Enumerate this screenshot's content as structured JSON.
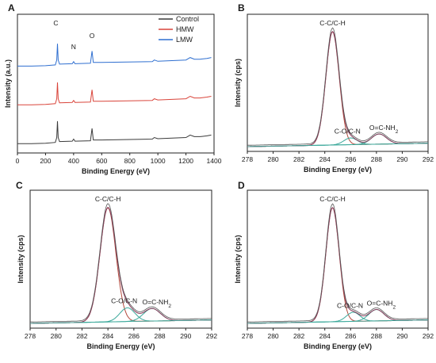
{
  "colors": {
    "control": "#3a3a3a",
    "hmw": "#d9443a",
    "lmw": "#2f6fd0",
    "fit": "#b34a3d",
    "sub": "#3aa89a",
    "env": "#8a3a5a"
  },
  "chart_data": [
    {
      "type": "line",
      "panel": "A",
      "xlabel": "Binding Energy (eV)",
      "ylabel": "Intensity (a.u.)",
      "xlim": [
        0,
        1400
      ],
      "x_ticks": [
        "0",
        "200",
        "400",
        "600",
        "800",
        "1000",
        "1200",
        "1400"
      ],
      "legend": {
        "placement": "top-right",
        "entries": [
          "Control",
          "HMW",
          "LMW"
        ]
      },
      "peak_labels": [
        {
          "text": "C",
          "x": 285
        },
        {
          "text": "N",
          "x": 400
        },
        {
          "text": "O",
          "x": 531
        }
      ],
      "series": [
        {
          "name": "Control",
          "color_key": "control",
          "offset": 0.0
        },
        {
          "name": "HMW",
          "color_key": "hmw",
          "offset": 0.33
        },
        {
          "name": "LMW",
          "color_key": "lmw",
          "offset": 0.66
        }
      ],
      "spectrum_points": {
        "x": [
          0,
          100,
          200,
          270,
          280,
          285,
          290,
          300,
          390,
          400,
          410,
          520,
          531,
          540,
          600,
          960,
          975,
          1000,
          1200,
          1230,
          1260,
          1300,
          1350,
          1380
        ],
        "y": [
          0.05,
          0.05,
          0.06,
          0.08,
          0.2,
          0.6,
          0.2,
          0.1,
          0.11,
          0.16,
          0.11,
          0.12,
          0.42,
          0.14,
          0.14,
          0.16,
          0.2,
          0.17,
          0.2,
          0.26,
          0.22,
          0.22,
          0.24,
          0.26
        ]
      }
    },
    {
      "type": "line",
      "panel": "B",
      "xlabel": "Binding Energy (eV)",
      "ylabel": "Intensity (cps)",
      "xlim": [
        278,
        292
      ],
      "x_ticks": [
        "278",
        "280",
        "282",
        "284",
        "286",
        "288",
        "290",
        "292"
      ],
      "peaks": [
        {
          "label": "C-C/C-H",
          "center": 284.6,
          "height": 1.0,
          "width": 0.8
        },
        {
          "label": "C-O/C-N",
          "center": 286.0,
          "height": 0.06,
          "width": 0.8
        },
        {
          "label": "O=C-NH",
          "label_sub": "2",
          "center": 288.2,
          "height": 0.09,
          "width": 0.9
        }
      ]
    },
    {
      "type": "line",
      "panel": "C",
      "xlabel": "Binding Energy (eV)",
      "ylabel": "Intensity (cps)",
      "xlim": [
        278,
        292
      ],
      "x_ticks": [
        "278",
        "280",
        "282",
        "284",
        "286",
        "288",
        "290",
        "292"
      ],
      "peaks": [
        {
          "label": "C-C/C-H",
          "center": 284.0,
          "height": 1.0,
          "width": 0.95
        },
        {
          "label": "C-O/C-N",
          "center": 285.5,
          "height": 0.12,
          "width": 0.9
        },
        {
          "label": "O=C-NH",
          "label_sub": "2",
          "center": 287.4,
          "height": 0.11,
          "width": 1.0
        }
      ]
    },
    {
      "type": "line",
      "panel": "D",
      "xlabel": "Binding Energy (eV)",
      "ylabel": "Intensity (cps)",
      "xlim": [
        278,
        292
      ],
      "x_ticks": [
        "278",
        "280",
        "282",
        "284",
        "286",
        "288",
        "290",
        "292"
      ],
      "peaks": [
        {
          "label": "C-C/C-H",
          "center": 284.6,
          "height": 1.0,
          "width": 0.8
        },
        {
          "label": "C-O/C-N",
          "center": 286.2,
          "height": 0.08,
          "width": 0.8
        },
        {
          "label": "O=C-NH",
          "label_sub": "2",
          "center": 288.0,
          "height": 0.1,
          "width": 0.9
        }
      ]
    }
  ]
}
